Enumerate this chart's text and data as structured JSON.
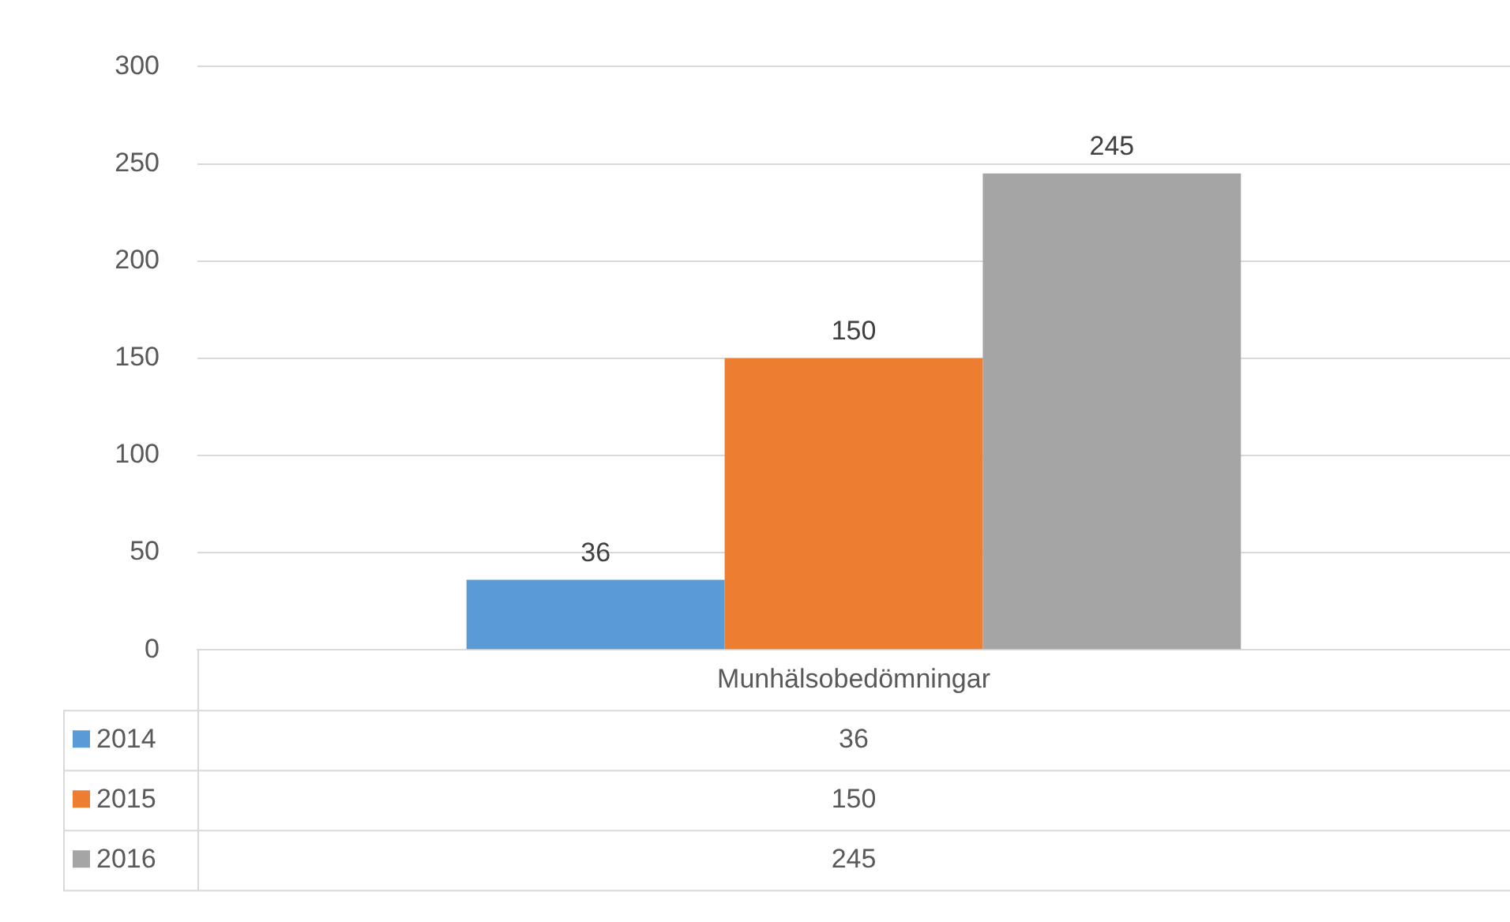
{
  "chart_data": {
    "type": "bar",
    "categories": [
      "Munhälsobedömningar"
    ],
    "series": [
      {
        "name": "2014",
        "color": "#5b9bd5",
        "values": [
          36
        ]
      },
      {
        "name": "2015",
        "color": "#ed7d31",
        "values": [
          150
        ]
      },
      {
        "name": "2016",
        "color": "#a5a5a5",
        "values": [
          245
        ]
      }
    ],
    "annotations": [
      "36",
      "150",
      "245"
    ],
    "ylim": [
      0,
      300
    ],
    "yticks": [
      0,
      50,
      100,
      150,
      200,
      250,
      300
    ],
    "grid": "y",
    "data_labels": true,
    "legend": "bottom"
  }
}
